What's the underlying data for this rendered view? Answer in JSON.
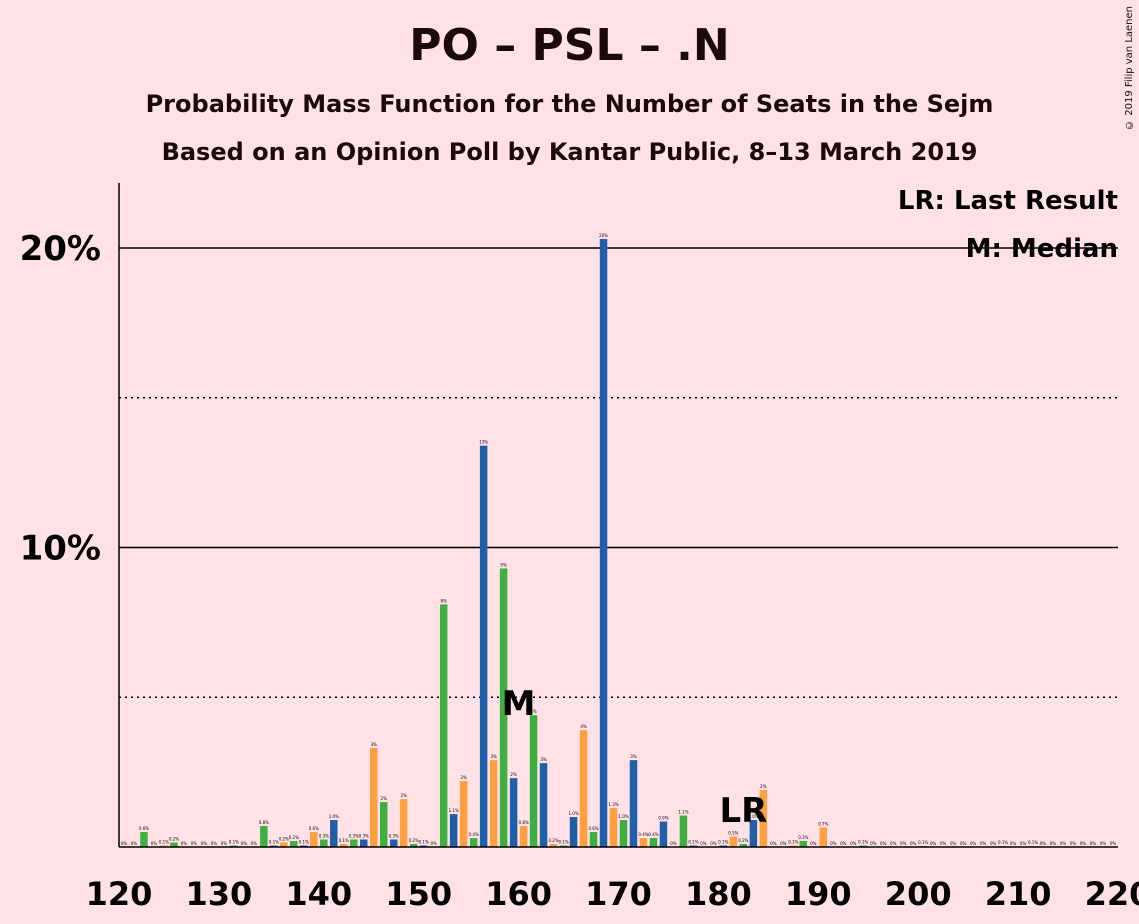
{
  "title": "PO – PSL – .N",
  "subtitle1": "Probability Mass Function for the Number of Seats in the Sejm",
  "subtitle2": "Based on an Opinion Poll by Kantar Public, 8–13 March 2019",
  "copyright": "© 2019 Filip van Laenen",
  "legend": {
    "lr": "LR: Last Result",
    "m": "M: Median"
  },
  "markers": {
    "median_label": "M",
    "median_seat": 160,
    "lr_label": "LR",
    "lr_seat": 182
  },
  "colors": {
    "blue": "#1F5FA8",
    "orange": "#FFA040",
    "green": "#3FAF3F",
    "background": "#FFE1E6"
  },
  "chart_data": {
    "type": "bar",
    "xlabel": "",
    "ylabel": "",
    "xlim": [
      120,
      220
    ],
    "ylim": [
      0,
      22
    ],
    "xticks": [
      "120",
      "130",
      "140",
      "150",
      "160",
      "170",
      "180",
      "190",
      "200",
      "210",
      "220"
    ],
    "yticks": [
      "10%",
      "20%"
    ],
    "ytick_values": [
      10,
      20
    ],
    "grid": "solid lines at 10% and 20%, dotted lines at 5% and 15%",
    "bars": [
      {
        "x": 120,
        "y": 0,
        "label": "0%"
      },
      {
        "x": 121,
        "y": 0,
        "label": "0%"
      },
      {
        "x": 122,
        "y": 0.5,
        "label": "0.6%"
      },
      {
        "x": 123,
        "y": 0,
        "label": "0%"
      },
      {
        "x": 124,
        "y": 0.05,
        "label": "0.1%"
      },
      {
        "x": 125,
        "y": 0.15,
        "label": "0.2%"
      },
      {
        "x": 126,
        "y": 0,
        "label": "0%"
      },
      {
        "x": 127,
        "y": 0,
        "label": "0%"
      },
      {
        "x": 128,
        "y": 0,
        "label": "0%"
      },
      {
        "x": 129,
        "y": 0,
        "label": "0%"
      },
      {
        "x": 130,
        "y": 0,
        "label": "0%"
      },
      {
        "x": 131,
        "y": 0.05,
        "label": "0.1%"
      },
      {
        "x": 132,
        "y": 0,
        "label": "0%"
      },
      {
        "x": 133,
        "y": 0,
        "label": "0%"
      },
      {
        "x": 134,
        "y": 0.7,
        "label": "0.8%"
      },
      {
        "x": 135,
        "y": 0.05,
        "label": "0.1%"
      },
      {
        "x": 136,
        "y": 0.15,
        "label": "0.2%"
      },
      {
        "x": 137,
        "y": 0.2,
        "label": "0.2%"
      },
      {
        "x": 138,
        "y": 0.05,
        "label": "0.1%"
      },
      {
        "x": 139,
        "y": 0.5,
        "label": "0.6%"
      },
      {
        "x": 140,
        "y": 0.25,
        "label": "0.3%"
      },
      {
        "x": 141,
        "y": 0.9,
        "label": "1.0%"
      },
      {
        "x": 142,
        "y": 0.1,
        "label": "0.1%"
      },
      {
        "x": 143,
        "y": 0.25,
        "label": "0.3%"
      },
      {
        "x": 144,
        "y": 0.25,
        "label": "0.3%"
      },
      {
        "x": 145,
        "y": 3.3,
        "label": "3%"
      },
      {
        "x": 146,
        "y": 1.5,
        "label": "2%"
      },
      {
        "x": 147,
        "y": 0.25,
        "label": "0.3%"
      },
      {
        "x": 148,
        "y": 1.6,
        "label": "2%"
      },
      {
        "x": 149,
        "y": 0.1,
        "label": "0.2%"
      },
      {
        "x": 150,
        "y": 0.05,
        "label": "0.1%"
      },
      {
        "x": 151,
        "y": 0,
        "label": "0%"
      },
      {
        "x": 152,
        "y": 8.1,
        "label": "8%"
      },
      {
        "x": 153,
        "y": 1.1,
        "label": "1.1%"
      },
      {
        "x": 154,
        "y": 2.2,
        "label": "2%"
      },
      {
        "x": 155,
        "y": 0.3,
        "label": "0.4%"
      },
      {
        "x": 156,
        "y": 13.4,
        "label": "13%"
      },
      {
        "x": 157,
        "y": 2.9,
        "label": "3%"
      },
      {
        "x": 158,
        "y": 9.3,
        "label": "9%"
      },
      {
        "x": 159,
        "y": 2.3,
        "label": "2%"
      },
      {
        "x": 160,
        "y": 0.7,
        "label": "0.8%"
      },
      {
        "x": 161,
        "y": 4.4,
        "label": "4%"
      },
      {
        "x": 162,
        "y": 2.8,
        "label": "3%"
      },
      {
        "x": 163,
        "y": 0.1,
        "label": "0.2%"
      },
      {
        "x": 164,
        "y": 0.05,
        "label": "0.1%"
      },
      {
        "x": 165,
        "y": 1.0,
        "label": "1.0%"
      },
      {
        "x": 166,
        "y": 3.9,
        "label": "4%"
      },
      {
        "x": 167,
        "y": 0.5,
        "label": "0.6%"
      },
      {
        "x": 168,
        "y": 20.3,
        "label": "20%"
      },
      {
        "x": 169,
        "y": 1.3,
        "label": "1.3%"
      },
      {
        "x": 170,
        "y": 0.9,
        "label": "1.0%"
      },
      {
        "x": 171,
        "y": 2.9,
        "label": "3%"
      },
      {
        "x": 172,
        "y": 0.3,
        "label": "0.4%"
      },
      {
        "x": 173,
        "y": 0.3,
        "label": "0.4%"
      },
      {
        "x": 174,
        "y": 0.85,
        "label": "0.9%"
      },
      {
        "x": 175,
        "y": 0,
        "label": "0%"
      },
      {
        "x": 176,
        "y": 1.05,
        "label": "1.1%"
      },
      {
        "x": 177,
        "y": 0.05,
        "label": "0.1%"
      },
      {
        "x": 178,
        "y": 0,
        "label": "0%"
      },
      {
        "x": 179,
        "y": 0,
        "label": "0%"
      },
      {
        "x": 180,
        "y": 0.05,
        "label": "0.1%"
      },
      {
        "x": 181,
        "y": 0.35,
        "label": "0.5%"
      },
      {
        "x": 182,
        "y": 0.1,
        "label": "0.2%"
      },
      {
        "x": 183,
        "y": 0.9,
        "label": "1.0%"
      },
      {
        "x": 184,
        "y": 1.9,
        "label": "2%"
      },
      {
        "x": 185,
        "y": 0,
        "label": "0%"
      },
      {
        "x": 186,
        "y": 0,
        "label": "0%"
      },
      {
        "x": 187,
        "y": 0.05,
        "label": "0.1%"
      },
      {
        "x": 188,
        "y": 0.2,
        "label": "0.3%"
      },
      {
        "x": 189,
        "y": 0,
        "label": "0%"
      },
      {
        "x": 190,
        "y": 0.65,
        "label": "0.7%"
      },
      {
        "x": 191,
        "y": 0,
        "label": "0%"
      },
      {
        "x": 192,
        "y": 0,
        "label": "0%"
      },
      {
        "x": 193,
        "y": 0,
        "label": "0%"
      },
      {
        "x": 194,
        "y": 0.05,
        "label": "0.1%"
      },
      {
        "x": 195,
        "y": 0,
        "label": "0%"
      },
      {
        "x": 196,
        "y": 0,
        "label": "0%"
      },
      {
        "x": 197,
        "y": 0,
        "label": "0%"
      },
      {
        "x": 198,
        "y": 0,
        "label": "0%"
      },
      {
        "x": 199,
        "y": 0,
        "label": "0%"
      },
      {
        "x": 200,
        "y": 0.03,
        "label": "0.1%"
      },
      {
        "x": 201,
        "y": 0,
        "label": "0%"
      },
      {
        "x": 202,
        "y": 0,
        "label": "0%"
      },
      {
        "x": 203,
        "y": 0,
        "label": "0%"
      },
      {
        "x": 204,
        "y": 0,
        "label": "0%"
      },
      {
        "x": 205,
        "y": 0,
        "label": "0%"
      },
      {
        "x": 206,
        "y": 0,
        "label": "0%"
      },
      {
        "x": 207,
        "y": 0,
        "label": "0%"
      },
      {
        "x": 208,
        "y": 0.03,
        "label": "0.1%"
      },
      {
        "x": 209,
        "y": 0,
        "label": "0%"
      },
      {
        "x": 210,
        "y": 0,
        "label": "0%"
      },
      {
        "x": 211,
        "y": 0.03,
        "label": "0.1%"
      },
      {
        "x": 212,
        "y": 0,
        "label": "0%"
      },
      {
        "x": 213,
        "y": 0,
        "label": "0%"
      },
      {
        "x": 214,
        "y": 0,
        "label": "0%"
      },
      {
        "x": 215,
        "y": 0,
        "label": "0%"
      },
      {
        "x": 216,
        "y": 0,
        "label": "0%"
      },
      {
        "x": 217,
        "y": 0,
        "label": "0%"
      },
      {
        "x": 218,
        "y": 0,
        "label": "0%"
      },
      {
        "x": 219,
        "y": 0,
        "label": "0%"
      }
    ]
  }
}
